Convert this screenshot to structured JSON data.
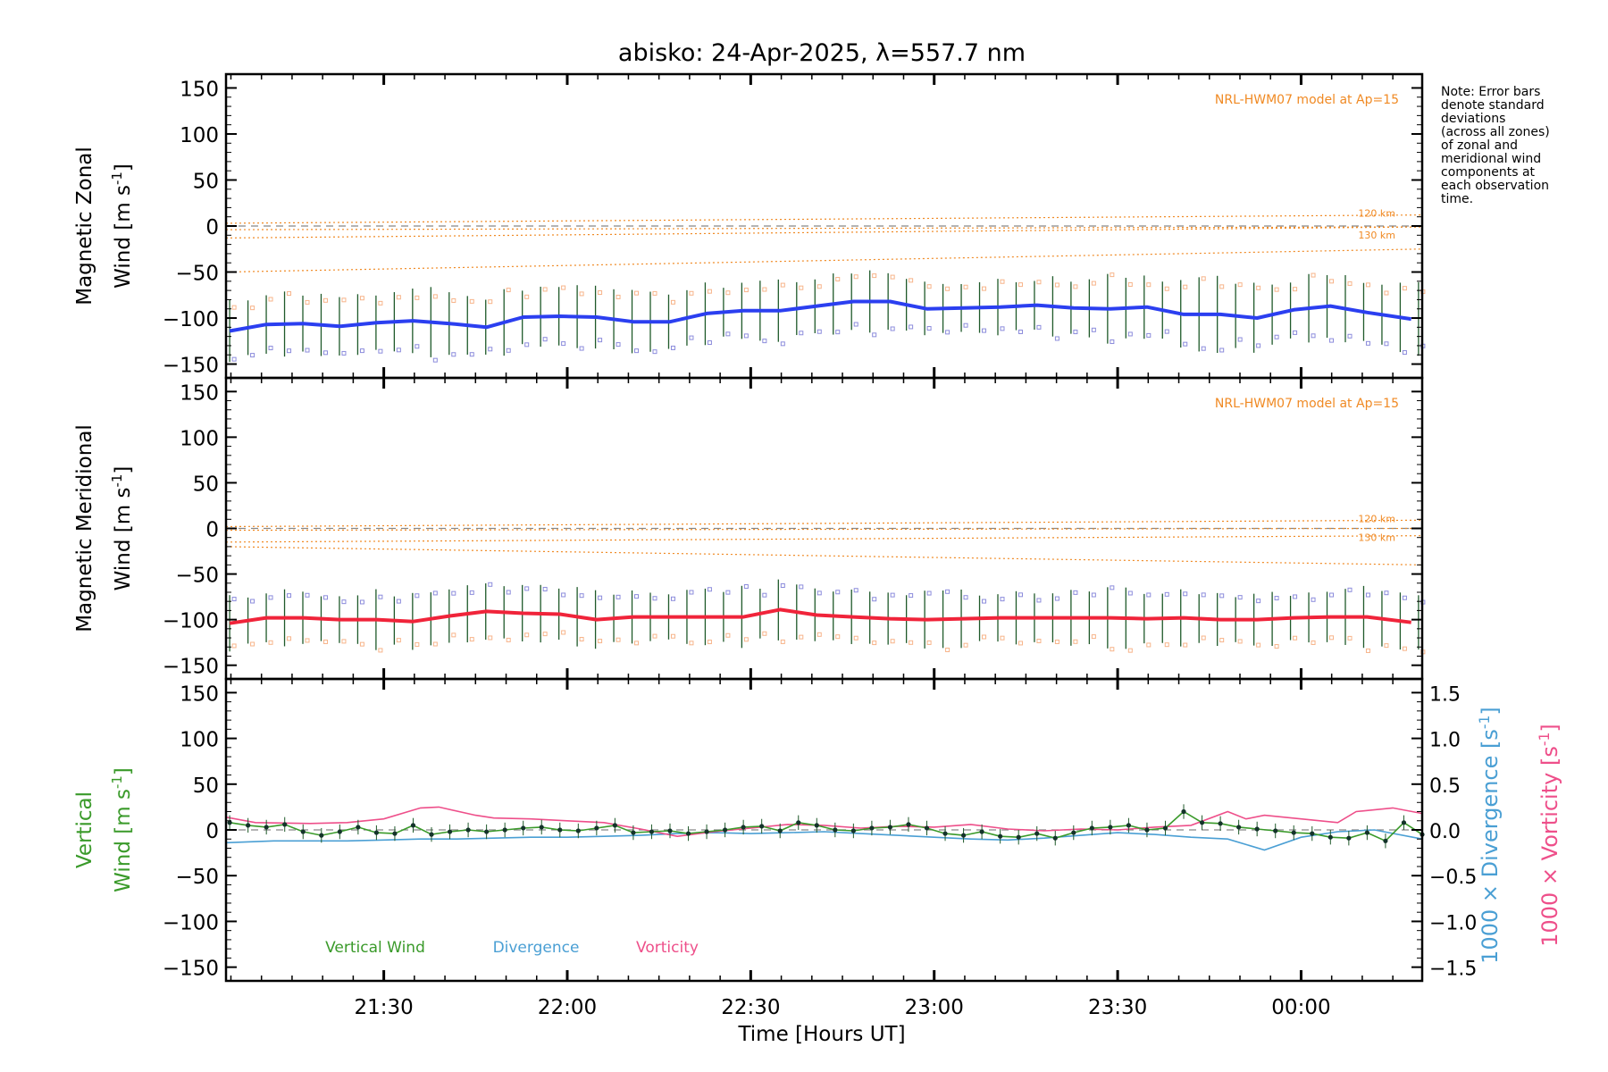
{
  "title": "abisko: 24-Apr-2025, λ=557.7 nm",
  "note": [
    "Note: Error bars",
    "denote standard",
    "deviations",
    "(across all zones)",
    "of zonal and",
    "meridional wind",
    "components at",
    "each observation",
    "time."
  ],
  "colors": {
    "zonal": "#2b3ff0",
    "meridional": "#f0243a",
    "vertical": "#3a9a2a",
    "divergence": "#4a9fd4",
    "vorticity": "#ee4f8a",
    "model": "#f08a24",
    "errorbar": "#1f5a2a",
    "zone_blue": "#8c8cdc",
    "zone_orange": "#f7b48a",
    "zero_line": "#888888"
  },
  "xaxis": {
    "label": "Time [Hours UT]",
    "ticks": [
      "21:30",
      "22:00",
      "22:30",
      "23:00",
      "23:30",
      "00:00"
    ],
    "tick_hours": [
      21.5,
      22.0,
      22.5,
      23.0,
      23.5,
      24.0
    ],
    "range_hours": [
      21.07,
      24.33
    ]
  },
  "chart_data": [
    {
      "type": "line",
      "panel": "zonal",
      "ylabel_line1": "Magnetic Zonal",
      "ylabel_line2": "Wind [m s-1]",
      "ylim": [
        -165,
        165
      ],
      "yticks": [
        150,
        100,
        50,
        0,
        -50,
        -100,
        -150
      ],
      "annotation": "NRL-HWM07 model at Ap=15",
      "model_labels": [
        "120 km",
        "130 km"
      ],
      "model_lines": [
        {
          "start": 3,
          "end": 12
        },
        {
          "start": -4,
          "end": -1
        },
        {
          "start": -13,
          "end": -1
        },
        {
          "start": -50,
          "end": -25
        }
      ],
      "series": [
        {
          "t": [
            21.08,
            21.18,
            21.28,
            21.38,
            21.48,
            21.58,
            21.68,
            21.78,
            21.88,
            21.98,
            22.08,
            22.18,
            22.28,
            22.38,
            22.48,
            22.58,
            22.68,
            22.78,
            22.88,
            22.98,
            23.08,
            23.18,
            23.28,
            23.38,
            23.48,
            23.58,
            23.68,
            23.78,
            23.88,
            23.98,
            24.08,
            24.18,
            24.3
          ],
          "values": [
            -114,
            -107,
            -106,
            -109,
            -105,
            -103,
            -106,
            -110,
            -99,
            -98,
            -99,
            -104,
            -104,
            -95,
            -92,
            -92,
            -87,
            -82,
            -82,
            -90,
            -89,
            -88,
            -86,
            -89,
            -90,
            -88,
            -96,
            -96,
            -100,
            -91,
            -87,
            -94,
            -101
          ],
          "err": [
            32,
            34,
            33,
            30,
            34,
            34,
            36,
            34,
            32,
            32,
            30,
            32,
            30,
            30,
            30,
            30,
            31,
            30,
            30,
            30,
            30,
            30,
            31,
            32,
            33,
            36,
            36,
            38,
            36,
            35,
            38,
            36,
            38
          ]
        }
      ]
    },
    {
      "type": "line",
      "panel": "meridional",
      "ylabel_line1": "Magnetic Meridional",
      "ylabel_line2": "Wind [m s-1]",
      "ylim": [
        -165,
        165
      ],
      "yticks": [
        150,
        100,
        50,
        0,
        -50,
        -100,
        -150
      ],
      "annotation": "NRL-HWM07 model at Ap=15",
      "model_labels": [
        "120 km",
        "130 km"
      ],
      "model_lines": [
        {
          "start": 2,
          "end": 9
        },
        {
          "start": -2,
          "end": 0
        },
        {
          "start": -15,
          "end": -8
        },
        {
          "start": -20,
          "end": -40
        }
      ],
      "series": [
        {
          "t": [
            21.08,
            21.18,
            21.28,
            21.38,
            21.48,
            21.58,
            21.68,
            21.78,
            21.88,
            21.98,
            22.08,
            22.18,
            22.28,
            22.38,
            22.48,
            22.58,
            22.68,
            22.78,
            22.88,
            22.98,
            23.08,
            23.18,
            23.28,
            23.38,
            23.48,
            23.58,
            23.68,
            23.78,
            23.88,
            23.98,
            24.08,
            24.18,
            24.3
          ],
          "values": [
            -104,
            -98,
            -98,
            -100,
            -100,
            -102,
            -96,
            -91,
            -93,
            -94,
            -100,
            -97,
            -97,
            -97,
            -97,
            -89,
            -95,
            -97,
            -99,
            -100,
            -99,
            -98,
            -98,
            -98,
            -98,
            -99,
            -98,
            -100,
            -100,
            -98,
            -97,
            -97,
            -103
          ],
          "err": [
            28,
            30,
            28,
            28,
            30,
            30,
            30,
            30,
            30,
            30,
            28,
            28,
            28,
            30,
            30,
            32,
            30,
            28,
            28,
            28,
            28,
            28,
            28,
            30,
            30,
            30,
            30,
            28,
            28,
            28,
            30,
            30,
            30
          ]
        }
      ]
    },
    {
      "type": "line",
      "panel": "vertical",
      "ylabel_line1": "Vertical",
      "ylabel_line2": "Wind [m s-1]",
      "ylim": [
        -165,
        165
      ],
      "yticks": [
        150,
        100,
        50,
        0,
        -50,
        -100,
        -150
      ],
      "y2_ticks": [
        "1.5",
        "1.0",
        "0.5",
        "0.0",
        "−0.5",
        "−1.0",
        "−1.5"
      ],
      "y2_values": [
        1.5,
        1.0,
        0.5,
        0.0,
        -0.5,
        -1.0,
        -1.5
      ],
      "y2label_divergence": "1000 × Divergence [s-1]",
      "y2label_vorticity": "1000 × Vorticity [s-1]",
      "legend": [
        "Vertical Wind",
        "Divergence",
        "Vorticity"
      ],
      "series": [
        {
          "name": "Vertical Wind",
          "t": [
            21.08,
            21.13,
            21.18,
            21.23,
            21.28,
            21.33,
            21.38,
            21.43,
            21.48,
            21.53,
            21.58,
            21.63,
            21.68,
            21.73,
            21.78,
            21.83,
            21.88,
            21.93,
            21.98,
            22.03,
            22.08,
            22.13,
            22.18,
            22.23,
            22.28,
            22.33,
            22.38,
            22.43,
            22.48,
            22.53,
            22.58,
            22.63,
            22.68,
            22.73,
            22.78,
            22.83,
            22.88,
            22.93,
            22.98,
            23.03,
            23.08,
            23.13,
            23.18,
            23.23,
            23.28,
            23.33,
            23.38,
            23.43,
            23.48,
            23.53,
            23.58,
            23.63,
            23.68,
            23.73,
            23.78,
            23.83,
            23.88,
            23.93,
            23.98,
            24.03,
            24.08,
            24.13,
            24.18,
            24.23,
            24.28,
            24.33
          ],
          "values": [
            8,
            5,
            3,
            6,
            -2,
            -6,
            -2,
            3,
            -3,
            -4,
            5,
            -5,
            -2,
            0,
            -2,
            0,
            2,
            3,
            0,
            -1,
            2,
            5,
            -3,
            -2,
            -1,
            -4,
            -2,
            0,
            3,
            4,
            -1,
            8,
            5,
            0,
            -1,
            2,
            3,
            6,
            2,
            -4,
            -6,
            -2,
            -7,
            -8,
            -4,
            -9,
            -3,
            2,
            3,
            5,
            0,
            2,
            20,
            8,
            7,
            3,
            1,
            -1,
            -3,
            -4,
            -8,
            -9,
            -3,
            -12,
            8,
            -5
          ]
        },
        {
          "name": "Divergence",
          "t": [
            21.07,
            21.2,
            21.3,
            21.4,
            21.5,
            21.6,
            21.7,
            21.8,
            21.9,
            22.0,
            22.1,
            22.2,
            22.3,
            22.4,
            22.5,
            22.6,
            22.7,
            22.8,
            22.9,
            23.0,
            23.1,
            23.2,
            23.3,
            23.4,
            23.5,
            23.6,
            23.7,
            23.8,
            23.9,
            24.0,
            24.1,
            24.2,
            24.33
          ],
          "values": [
            -0.14,
            -0.12,
            -0.12,
            -0.12,
            -0.11,
            -0.1,
            -0.1,
            -0.09,
            -0.08,
            -0.08,
            -0.07,
            -0.06,
            -0.04,
            -0.03,
            -0.04,
            -0.03,
            -0.02,
            -0.04,
            -0.06,
            -0.08,
            -0.1,
            -0.11,
            -0.09,
            -0.06,
            -0.03,
            -0.05,
            -0.08,
            -0.1,
            -0.22,
            -0.08,
            -0.02,
            0.0,
            -0.1
          ]
        },
        {
          "name": "Vorticity",
          "t": [
            21.07,
            21.15,
            21.3,
            21.4,
            21.5,
            21.6,
            21.65,
            21.75,
            21.8,
            21.9,
            22.0,
            22.1,
            22.2,
            22.3,
            22.4,
            22.5,
            22.6,
            22.7,
            22.8,
            22.9,
            23.0,
            23.1,
            23.2,
            23.3,
            23.4,
            23.5,
            23.6,
            23.7,
            23.8,
            23.85,
            23.9,
            24.0,
            24.1,
            24.15,
            24.25,
            24.33
          ],
          "values": [
            0.14,
            0.08,
            0.07,
            0.08,
            0.12,
            0.24,
            0.25,
            0.16,
            0.13,
            0.12,
            0.1,
            0.08,
            0.01,
            -0.07,
            -0.02,
            0.02,
            0.06,
            0.05,
            0.02,
            0.04,
            0.03,
            0.06,
            0.01,
            -0.01,
            0.01,
            0.0,
            0.03,
            0.05,
            0.2,
            0.12,
            0.16,
            0.12,
            0.08,
            0.2,
            0.24,
            0.18
          ]
        }
      ]
    }
  ]
}
